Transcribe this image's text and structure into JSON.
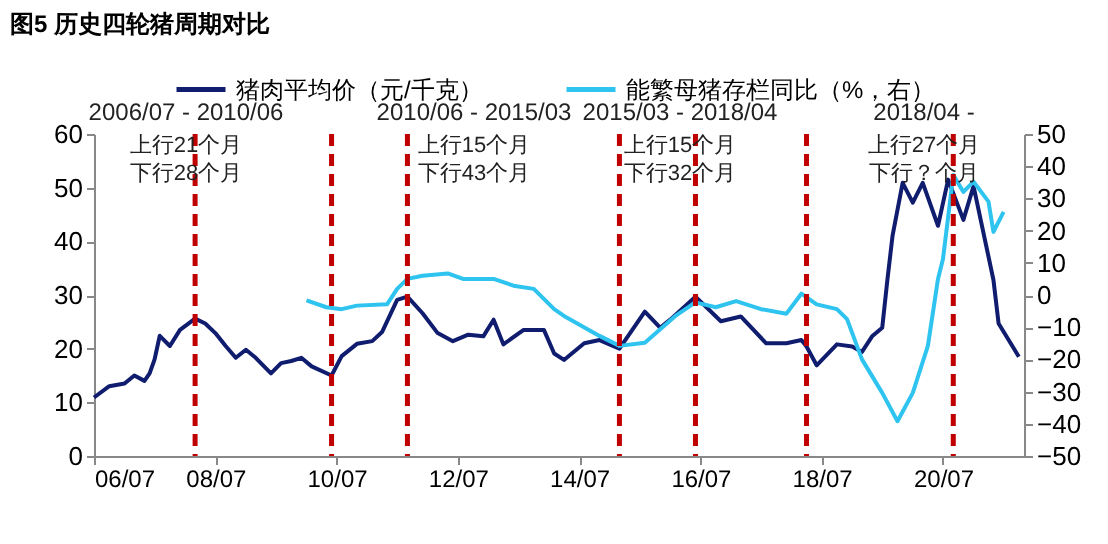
{
  "chart_data": {
    "type": "line",
    "title": "图5 历史四轮猪周期对比",
    "annotations": [
      "2006/07 - 2010/06",
      "上行21个月",
      "下行28个月",
      "2010/06 - 2015/03",
      "上行15个月",
      "下行43个月",
      "2015/03 - 2018/04",
      "上行15个月",
      "下行32个月",
      "2018/04 -",
      "上行27个月",
      "下行？个月"
    ],
    "series": [
      {
        "name": "猪肉平均价（元/千克）",
        "color": "#101c6e",
        "x": [
          "2006-07",
          "2006-10",
          "2007-01",
          "2007-03",
          "2007-05",
          "2007-06",
          "2007-07",
          "2007-08",
          "2007-10",
          "2007-12",
          "2008-03",
          "2008-05",
          "2008-07",
          "2008-09",
          "2008-11",
          "2009-01",
          "2009-03",
          "2009-06",
          "2009-08",
          "2009-10",
          "2009-12",
          "2010-02",
          "2010-06",
          "2010-08",
          "2010-11",
          "2011-02",
          "2011-04",
          "2011-07",
          "2011-09",
          "2011-12",
          "2012-03",
          "2012-06",
          "2012-09",
          "2012-12",
          "2013-02",
          "2013-04",
          "2013-08",
          "2013-12",
          "2014-02",
          "2014-04",
          "2014-08",
          "2014-11",
          "2015-03",
          "2015-08",
          "2015-11",
          "2016-01",
          "2016-06",
          "2016-11",
          "2017-03",
          "2017-08",
          "2017-12",
          "2018-03",
          "2018-04",
          "2018-06",
          "2018-10",
          "2019-01",
          "2019-03",
          "2019-05",
          "2019-07",
          "2019-08",
          "2019-09",
          "2019-11",
          "2020-01",
          "2020-03",
          "2020-06",
          "2020-08",
          "2020-11",
          "2021-01",
          "2021-05",
          "2021-06",
          "2021-10"
        ],
        "values": [
          10.9,
          13.0,
          13.5,
          15.0,
          14.0,
          15.4,
          18.0,
          22.4,
          20.5,
          23.5,
          25.6,
          24.7,
          22.9,
          20.5,
          18.3,
          19.8,
          18.3,
          15.4,
          17.3,
          17.7,
          18.3,
          16.7,
          15.0,
          18.6,
          20.9,
          21.4,
          23.1,
          29.1,
          29.7,
          26.6,
          22.9,
          21.4,
          22.6,
          22.3,
          25.4,
          20.8,
          23.5,
          23.5,
          19.1,
          17.9,
          21.0,
          21.6,
          20.0,
          26.9,
          23.9,
          25.4,
          29.7,
          25.1,
          26.0,
          21.0,
          21.0,
          21.6,
          20.4,
          16.9,
          20.8,
          20.4,
          19.4,
          22.3,
          23.9,
          32.8,
          41,
          50.9,
          47.2,
          50.9,
          42.9,
          51.5,
          44,
          50.3,
          32.8,
          24.7,
          18.5
        ]
      },
      {
        "name": "能繁母猪存栏同比（%，右）",
        "color": "#2ec4ef",
        "axis": "y2",
        "x": [
          "2010-01",
          "2010-05",
          "2010-08",
          "2010-11",
          "2011-05",
          "2011-07",
          "2011-09",
          "2011-12",
          "2012-05",
          "2012-08",
          "2013-02",
          "2013-06",
          "2013-10",
          "2014-02",
          "2014-04",
          "2014-11",
          "2015-03",
          "2015-08",
          "2016-02",
          "2016-06",
          "2016-10",
          "2017-02",
          "2017-07",
          "2017-12",
          "2018-03",
          "2018-06",
          "2018-10",
          "2018-12",
          "2019-03",
          "2019-07",
          "2019-10",
          "2020-01",
          "2020-04",
          "2020-06",
          "2020-07",
          "2020-09",
          "2020-11",
          "2021-01",
          "2021-04",
          "2021-05",
          "2021-07"
        ],
        "values": [
          -1.7,
          -3.8,
          -4.4,
          -3.3,
          -2.9,
          1.9,
          5,
          6,
          6.7,
          5,
          5,
          2.9,
          1.9,
          -4.4,
          -6.5,
          -12.7,
          -15.8,
          -14.8,
          -6.5,
          -2.3,
          -3.8,
          -1.9,
          -4.4,
          -5.8,
          0.4,
          -2.9,
          -4.4,
          -7.5,
          -20,
          -30.4,
          -39.2,
          -30.4,
          -15.8,
          5,
          11.2,
          37.3,
          32,
          35.2,
          29,
          19.6,
          25.8
        ]
      }
    ],
    "xlim": [
      "2006-07",
      "2021-11"
    ],
    "xticks": [
      {
        "value": "2006-07",
        "label": "06/07"
      },
      {
        "value": "2008-07",
        "label": "08/07"
      },
      {
        "value": "2010-07",
        "label": "10/07"
      },
      {
        "value": "2012-07",
        "label": "12/07"
      },
      {
        "value": "2014-07",
        "label": "14/07"
      },
      {
        "value": "2016-07",
        "label": "16/07"
      },
      {
        "value": "2018-07",
        "label": "18/07"
      },
      {
        "value": "2020-07",
        "label": "20/07"
      }
    ],
    "ylim": [
      0,
      60
    ],
    "yticks": [
      0,
      10,
      20,
      30,
      40,
      50,
      60
    ],
    "y2lim": [
      -50,
      50
    ],
    "y2ticks": [
      -50,
      -40,
      -30,
      -20,
      -10,
      0,
      10,
      20,
      30,
      40,
      50
    ],
    "ref_lines": [
      {
        "axis": "x",
        "value": "2008-03",
        "color": "#c00000",
        "line_style": "dashed"
      },
      {
        "axis": "x",
        "value": "2010-06",
        "color": "#c00000",
        "line_style": "dashed"
      },
      {
        "axis": "x",
        "value": "2011-09",
        "color": "#c00000",
        "line_style": "dashed"
      },
      {
        "axis": "x",
        "value": "2015-03",
        "color": "#c00000",
        "line_style": "dashed"
      },
      {
        "axis": "x",
        "value": "2016-06",
        "color": "#c00000",
        "line_style": "dashed"
      },
      {
        "axis": "x",
        "value": "2018-04",
        "color": "#c00000",
        "line_style": "dashed"
      },
      {
        "axis": "x",
        "value": "2020-09",
        "color": "#c00000",
        "line_style": "dashed"
      }
    ],
    "legend": "top"
  }
}
